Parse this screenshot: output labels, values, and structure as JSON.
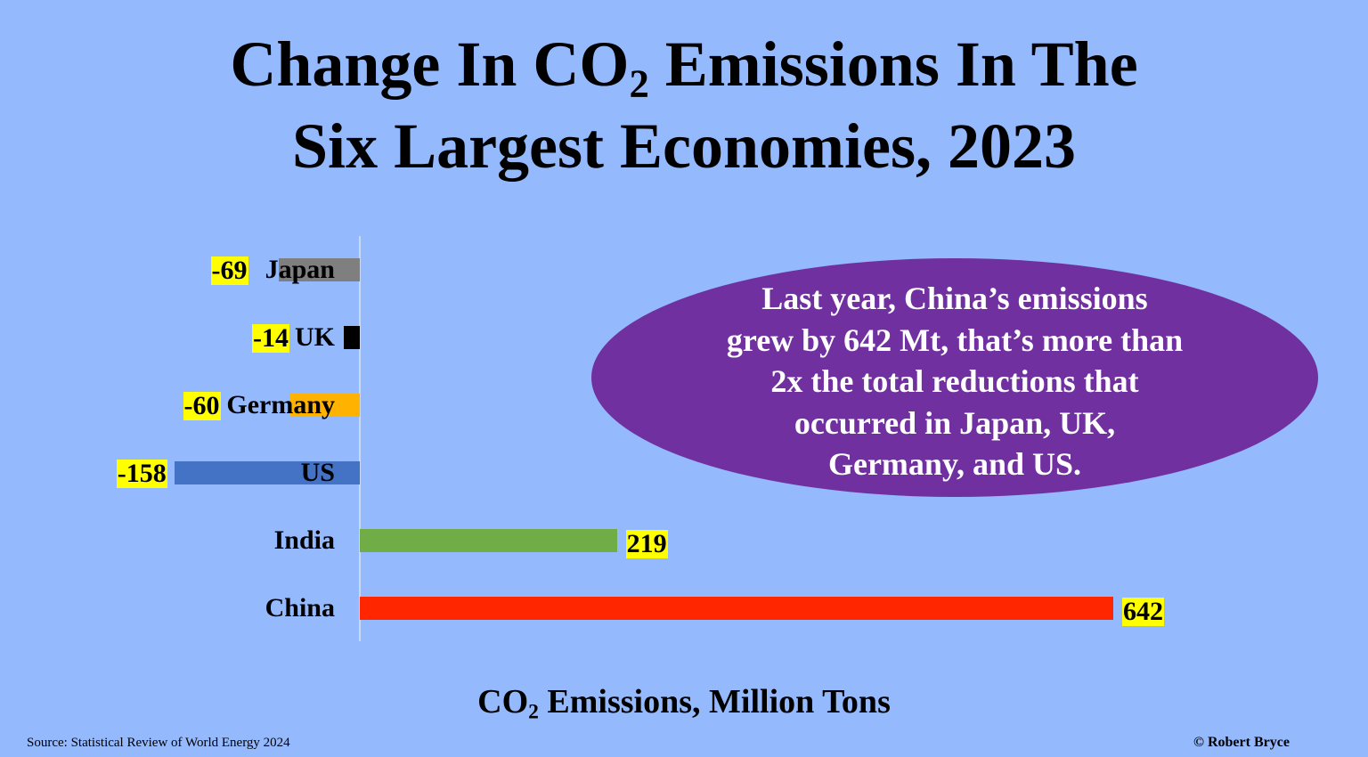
{
  "chart_data": {
    "type": "bar",
    "orientation": "horizontal",
    "title_line1_pre": "Change In CO",
    "title_line1_sub": "2",
    "title_line1_post": " Emissions In The",
    "title_line2": "Six Largest Economies, 2023",
    "categories": [
      "Japan",
      "UK",
      "Germany",
      "US",
      "India",
      "China"
    ],
    "values": [
      -69,
      -14,
      -60,
      -158,
      219,
      642
    ],
    "value_labels": [
      "-69",
      "-14",
      "-60",
      "-158",
      "219",
      "642"
    ],
    "colors": [
      "#7f7f7f",
      "#000000",
      "#ffb300",
      "#4472c4",
      "#70ad47",
      "#ff2600"
    ],
    "xlabel_pre": "CO",
    "xlabel_sub": "2",
    "xlabel_post": " Emissions, Million Tons",
    "xlim": [
      -158,
      642
    ],
    "grid": false,
    "legend": "none",
    "annotation": [
      "Last year, China’s emissions",
      "grew by 642 Mt, that’s more than",
      "2x the total reductions that",
      "occurred in Japan, UK,",
      "Germany, and US."
    ]
  },
  "colors": {
    "background": "#94b9fd",
    "highlight": "#ffff00",
    "annotation_fill": "#7030a0"
  },
  "footer": {
    "source": "Source: Statistical Review of World Energy  2024",
    "credit": "© Robert Bryce"
  }
}
